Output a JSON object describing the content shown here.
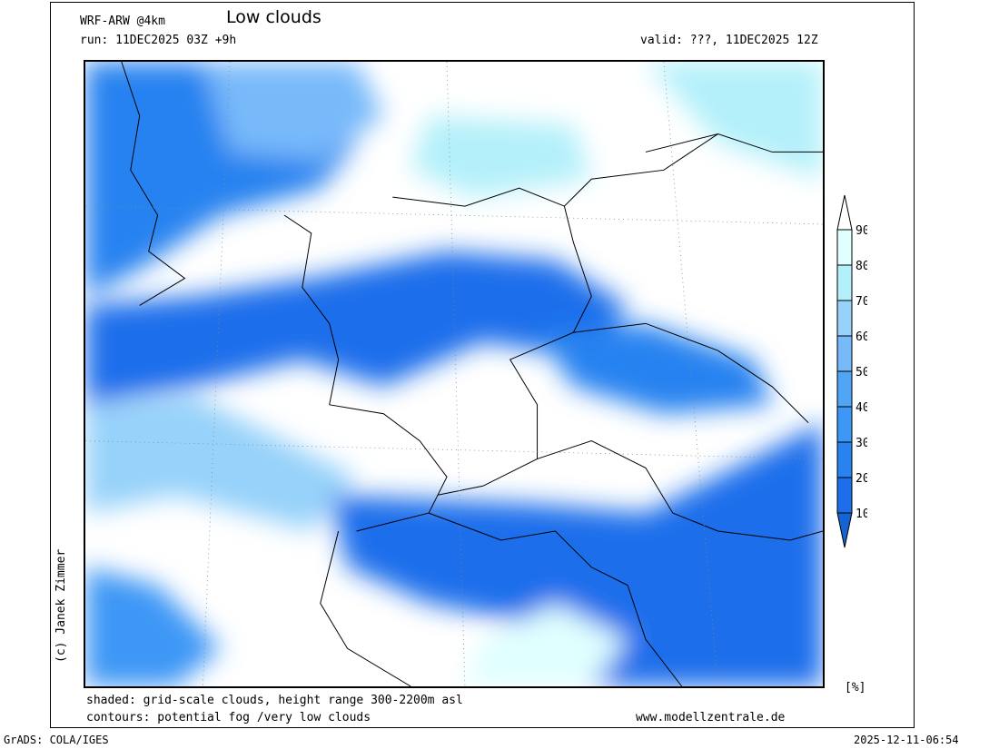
{
  "header": {
    "model": "WRF-ARW @4km",
    "title": "Low clouds",
    "run": "run: 11DEC2025 03Z +9h",
    "valid": "valid: ???, 11DEC2025 12Z"
  },
  "colorbar": {
    "unit": "[%]",
    "labels": [
      "90",
      "80",
      "70",
      "60",
      "50",
      "40",
      "30",
      "20",
      "10"
    ],
    "colors": [
      "#ffffff",
      "#e0ffff",
      "#b4f0fa",
      "#96d2fa",
      "#78b9fa",
      "#50a5f5",
      "#3c97f5",
      "#2882f0",
      "#1e6eeb",
      "#1464d2"
    ]
  },
  "footer": {
    "shaded": "shaded: grid-scale clouds, height range 300-2200m asl",
    "contours": "contours: potential fog /very low clouds",
    "website": "www.modellzentrale.de",
    "grads": "GrADS: COLA/IGES",
    "timestamp": "2025-12-11-06:54"
  },
  "copyright": "(c) Janek Zimmer"
}
